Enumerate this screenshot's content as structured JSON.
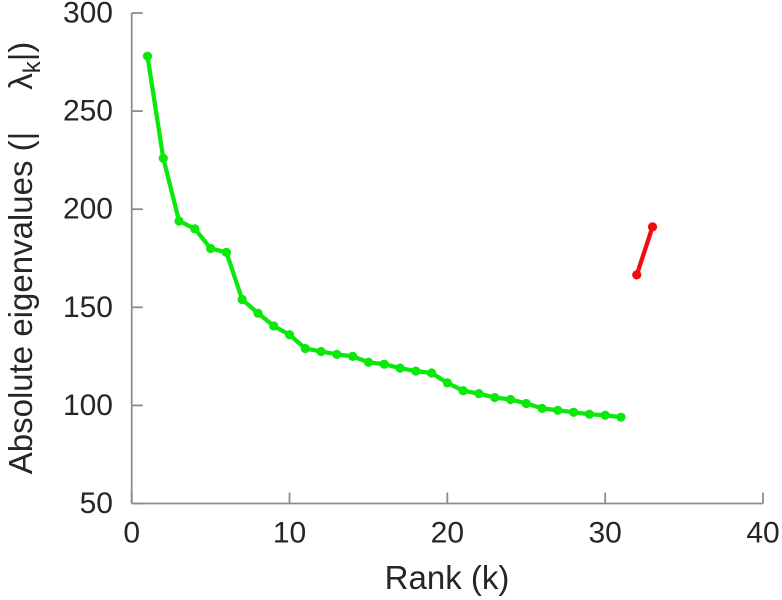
{
  "figure": {
    "background": "#ffffff",
    "text_color": "#262626",
    "axis_color": "#8c8c8c"
  },
  "chart_data": {
    "type": "line",
    "title": "",
    "xlabel": "Rank (k)",
    "ylabel_prefix": "Absolute eigenvalues (|",
    "ylabel_symbol": "λ",
    "ylabel_subscript": "k",
    "ylabel_suffix": "|)",
    "xlim": [
      0,
      40
    ],
    "ylim": [
      50,
      300
    ],
    "x_ticks": [
      "0",
      "10",
      "20",
      "30",
      "40"
    ],
    "x_tick_values": [
      0,
      10,
      20,
      30,
      40
    ],
    "y_ticks": [
      "50",
      "100",
      "150",
      "200",
      "250",
      "300"
    ],
    "y_tick_values": [
      50,
      100,
      150,
      200,
      250,
      300
    ],
    "grid": false,
    "legend_position": "none",
    "series": [
      {
        "name": "absolute-eigenvalues",
        "color": "#0ce80c",
        "marker": "circle",
        "x": [
          1,
          2,
          3,
          4,
          5,
          6,
          7,
          8,
          9,
          10,
          11,
          12,
          13,
          14,
          15,
          16,
          17,
          18,
          19,
          20,
          21,
          22,
          23,
          24,
          25,
          26,
          27,
          28,
          29,
          30,
          31
        ],
        "y": [
          278,
          226,
          194,
          190,
          180,
          178,
          154,
          147,
          140.5,
          136,
          129,
          127.5,
          126,
          125,
          122,
          121,
          119,
          117.5,
          116.5,
          111.5,
          107.5,
          106,
          104,
          103,
          101,
          98.5,
          97.5,
          96.5,
          95.5,
          95,
          94
        ]
      },
      {
        "name": "outlier-eigenvalues",
        "color": "#f20d0d",
        "marker": "circle",
        "x": [
          32,
          33
        ],
        "y": [
          166.5,
          191
        ]
      }
    ]
  }
}
